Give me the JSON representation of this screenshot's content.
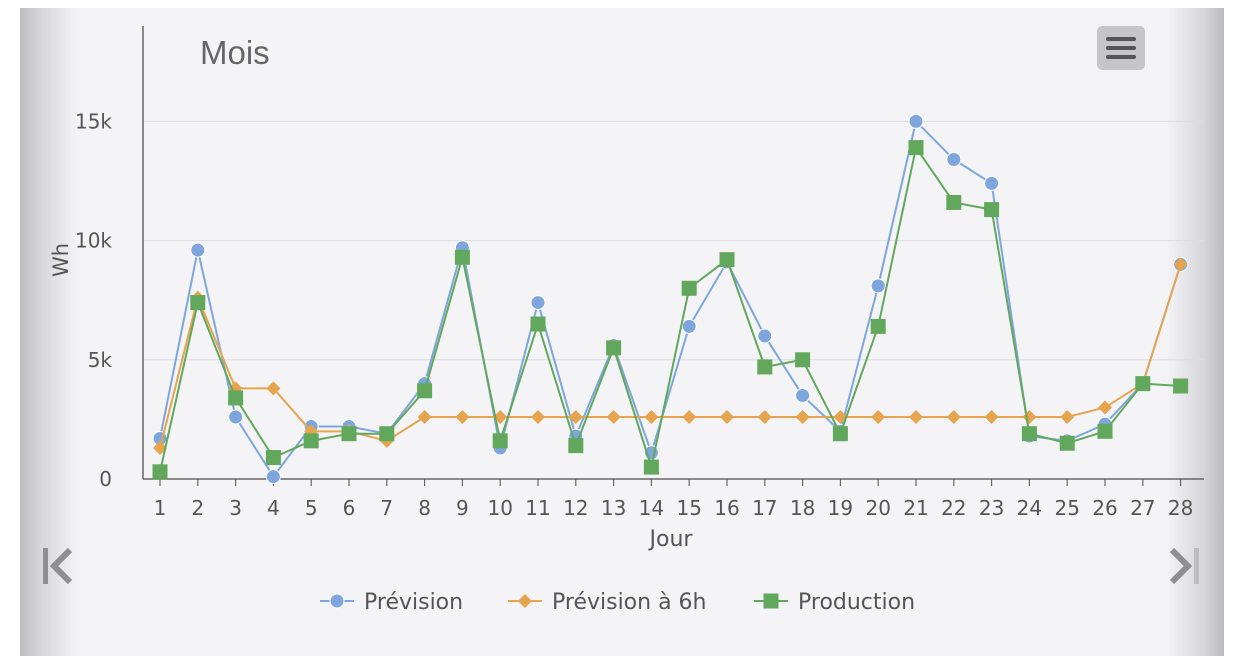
{
  "chart_data": {
    "type": "line",
    "title": "Mois",
    "xlabel": "Jour",
    "ylabel": "Wh",
    "categories": [
      "1",
      "2",
      "3",
      "4",
      "5",
      "6",
      "7",
      "8",
      "9",
      "10",
      "11",
      "12",
      "13",
      "14",
      "15",
      "16",
      "17",
      "18",
      "19",
      "20",
      "21",
      "22",
      "23",
      "24",
      "25",
      "26",
      "27",
      "28"
    ],
    "ylim": [
      0,
      19000
    ],
    "yticks": [
      0,
      5000,
      10000,
      15000
    ],
    "ytick_labels": [
      "0",
      "5k",
      "10k",
      "15k"
    ],
    "grid": true,
    "legend_position": "bottom",
    "series": [
      {
        "name": "Prévision",
        "marker": "circle",
        "color": "#7fa6dc",
        "values": [
          1700,
          9600,
          2600,
          100,
          2200,
          2200,
          1900,
          4000,
          9700,
          1300,
          7400,
          1800,
          5600,
          1100,
          6400,
          9100,
          6000,
          3500,
          2000,
          8100,
          15000,
          13400,
          12400,
          1800,
          1600,
          2300,
          4000,
          9000
        ]
      },
      {
        "name": "Prévision à 6h",
        "marker": "diamond",
        "color": "#e5a44d",
        "values": [
          1300,
          7600,
          3800,
          3800,
          2000,
          2000,
          1600,
          2600,
          2600,
          2600,
          2600,
          2600,
          2600,
          2600,
          2600,
          2600,
          2600,
          2600,
          2600,
          2600,
          2600,
          2600,
          2600,
          2600,
          2600,
          3000,
          4000,
          9000
        ]
      },
      {
        "name": "Production",
        "marker": "square",
        "color": "#62a85c",
        "values": [
          300,
          7400,
          3400,
          900,
          1600,
          1900,
          1900,
          3700,
          9300,
          1600,
          6500,
          1400,
          5500,
          500,
          8000,
          9200,
          4700,
          5000,
          1900,
          6400,
          13900,
          11600,
          11300,
          1900,
          1500,
          2000,
          4000,
          3900
        ]
      }
    ]
  },
  "ui": {
    "menu_icon": "hamburger-menu-icon",
    "prev_icon": "skip-previous-icon",
    "next_icon": "skip-next-icon",
    "colors": {
      "background": "#f4f4f7",
      "grid": "#dcdce2",
      "axis": "#666666",
      "text": "#555555"
    }
  }
}
